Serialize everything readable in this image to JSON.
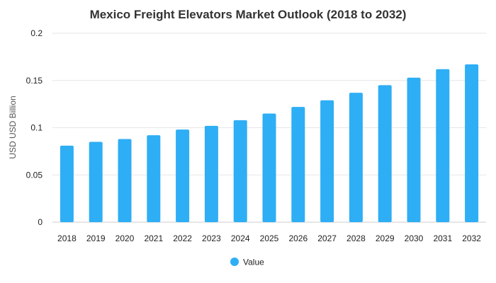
{
  "chart_data": {
    "type": "bar",
    "title": "Mexico Freight Elevators Market Outlook (2018 to 2032)",
    "xlabel": "",
    "ylabel": "USD USD Billion",
    "ylim": [
      0,
      0.2
    ],
    "yticks": [
      "0",
      "0.05",
      "0.1",
      "0.15",
      "0.2"
    ],
    "categories": [
      "2018",
      "2019",
      "2020",
      "2021",
      "2022",
      "2023",
      "2024",
      "2025",
      "2026",
      "2027",
      "2028",
      "2029",
      "2030",
      "2031",
      "2032"
    ],
    "series": [
      {
        "name": "Value",
        "color": "#2eaef5",
        "values": [
          0.081,
          0.085,
          0.088,
          0.092,
          0.098,
          0.102,
          0.108,
          0.115,
          0.122,
          0.129,
          0.137,
          0.145,
          0.153,
          0.162,
          0.167
        ]
      }
    ],
    "grid": true,
    "legend_position": "bottom-center"
  }
}
